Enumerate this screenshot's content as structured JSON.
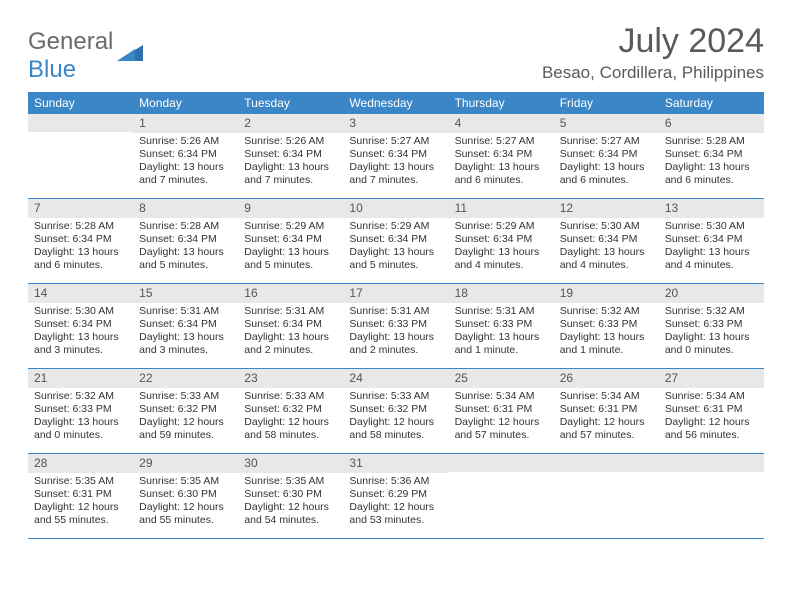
{
  "logo": {
    "text1": "General",
    "text2": "Blue"
  },
  "title": "July 2024",
  "location": "Besao, Cordillera, Philippines",
  "weekdays": [
    "Sunday",
    "Monday",
    "Tuesday",
    "Wednesday",
    "Thursday",
    "Friday",
    "Saturday"
  ],
  "colors": {
    "header_bg": "#3b86c7",
    "daynum_bg": "#e8e8e8",
    "border": "#3b86c7"
  },
  "weeks": [
    [
      {
        "num": "",
        "sunrise": "",
        "sunset": "",
        "daylight1": "",
        "daylight2": ""
      },
      {
        "num": "1",
        "sunrise": "Sunrise: 5:26 AM",
        "sunset": "Sunset: 6:34 PM",
        "daylight1": "Daylight: 13 hours",
        "daylight2": "and 7 minutes."
      },
      {
        "num": "2",
        "sunrise": "Sunrise: 5:26 AM",
        "sunset": "Sunset: 6:34 PM",
        "daylight1": "Daylight: 13 hours",
        "daylight2": "and 7 minutes."
      },
      {
        "num": "3",
        "sunrise": "Sunrise: 5:27 AM",
        "sunset": "Sunset: 6:34 PM",
        "daylight1": "Daylight: 13 hours",
        "daylight2": "and 7 minutes."
      },
      {
        "num": "4",
        "sunrise": "Sunrise: 5:27 AM",
        "sunset": "Sunset: 6:34 PM",
        "daylight1": "Daylight: 13 hours",
        "daylight2": "and 6 minutes."
      },
      {
        "num": "5",
        "sunrise": "Sunrise: 5:27 AM",
        "sunset": "Sunset: 6:34 PM",
        "daylight1": "Daylight: 13 hours",
        "daylight2": "and 6 minutes."
      },
      {
        "num": "6",
        "sunrise": "Sunrise: 5:28 AM",
        "sunset": "Sunset: 6:34 PM",
        "daylight1": "Daylight: 13 hours",
        "daylight2": "and 6 minutes."
      }
    ],
    [
      {
        "num": "7",
        "sunrise": "Sunrise: 5:28 AM",
        "sunset": "Sunset: 6:34 PM",
        "daylight1": "Daylight: 13 hours",
        "daylight2": "and 6 minutes."
      },
      {
        "num": "8",
        "sunrise": "Sunrise: 5:28 AM",
        "sunset": "Sunset: 6:34 PM",
        "daylight1": "Daylight: 13 hours",
        "daylight2": "and 5 minutes."
      },
      {
        "num": "9",
        "sunrise": "Sunrise: 5:29 AM",
        "sunset": "Sunset: 6:34 PM",
        "daylight1": "Daylight: 13 hours",
        "daylight2": "and 5 minutes."
      },
      {
        "num": "10",
        "sunrise": "Sunrise: 5:29 AM",
        "sunset": "Sunset: 6:34 PM",
        "daylight1": "Daylight: 13 hours",
        "daylight2": "and 5 minutes."
      },
      {
        "num": "11",
        "sunrise": "Sunrise: 5:29 AM",
        "sunset": "Sunset: 6:34 PM",
        "daylight1": "Daylight: 13 hours",
        "daylight2": "and 4 minutes."
      },
      {
        "num": "12",
        "sunrise": "Sunrise: 5:30 AM",
        "sunset": "Sunset: 6:34 PM",
        "daylight1": "Daylight: 13 hours",
        "daylight2": "and 4 minutes."
      },
      {
        "num": "13",
        "sunrise": "Sunrise: 5:30 AM",
        "sunset": "Sunset: 6:34 PM",
        "daylight1": "Daylight: 13 hours",
        "daylight2": "and 4 minutes."
      }
    ],
    [
      {
        "num": "14",
        "sunrise": "Sunrise: 5:30 AM",
        "sunset": "Sunset: 6:34 PM",
        "daylight1": "Daylight: 13 hours",
        "daylight2": "and 3 minutes."
      },
      {
        "num": "15",
        "sunrise": "Sunrise: 5:31 AM",
        "sunset": "Sunset: 6:34 PM",
        "daylight1": "Daylight: 13 hours",
        "daylight2": "and 3 minutes."
      },
      {
        "num": "16",
        "sunrise": "Sunrise: 5:31 AM",
        "sunset": "Sunset: 6:34 PM",
        "daylight1": "Daylight: 13 hours",
        "daylight2": "and 2 minutes."
      },
      {
        "num": "17",
        "sunrise": "Sunrise: 5:31 AM",
        "sunset": "Sunset: 6:33 PM",
        "daylight1": "Daylight: 13 hours",
        "daylight2": "and 2 minutes."
      },
      {
        "num": "18",
        "sunrise": "Sunrise: 5:31 AM",
        "sunset": "Sunset: 6:33 PM",
        "daylight1": "Daylight: 13 hours",
        "daylight2": "and 1 minute."
      },
      {
        "num": "19",
        "sunrise": "Sunrise: 5:32 AM",
        "sunset": "Sunset: 6:33 PM",
        "daylight1": "Daylight: 13 hours",
        "daylight2": "and 1 minute."
      },
      {
        "num": "20",
        "sunrise": "Sunrise: 5:32 AM",
        "sunset": "Sunset: 6:33 PM",
        "daylight1": "Daylight: 13 hours",
        "daylight2": "and 0 minutes."
      }
    ],
    [
      {
        "num": "21",
        "sunrise": "Sunrise: 5:32 AM",
        "sunset": "Sunset: 6:33 PM",
        "daylight1": "Daylight: 13 hours",
        "daylight2": "and 0 minutes."
      },
      {
        "num": "22",
        "sunrise": "Sunrise: 5:33 AM",
        "sunset": "Sunset: 6:32 PM",
        "daylight1": "Daylight: 12 hours",
        "daylight2": "and 59 minutes."
      },
      {
        "num": "23",
        "sunrise": "Sunrise: 5:33 AM",
        "sunset": "Sunset: 6:32 PM",
        "daylight1": "Daylight: 12 hours",
        "daylight2": "and 58 minutes."
      },
      {
        "num": "24",
        "sunrise": "Sunrise: 5:33 AM",
        "sunset": "Sunset: 6:32 PM",
        "daylight1": "Daylight: 12 hours",
        "daylight2": "and 58 minutes."
      },
      {
        "num": "25",
        "sunrise": "Sunrise: 5:34 AM",
        "sunset": "Sunset: 6:31 PM",
        "daylight1": "Daylight: 12 hours",
        "daylight2": "and 57 minutes."
      },
      {
        "num": "26",
        "sunrise": "Sunrise: 5:34 AM",
        "sunset": "Sunset: 6:31 PM",
        "daylight1": "Daylight: 12 hours",
        "daylight2": "and 57 minutes."
      },
      {
        "num": "27",
        "sunrise": "Sunrise: 5:34 AM",
        "sunset": "Sunset: 6:31 PM",
        "daylight1": "Daylight: 12 hours",
        "daylight2": "and 56 minutes."
      }
    ],
    [
      {
        "num": "28",
        "sunrise": "Sunrise: 5:35 AM",
        "sunset": "Sunset: 6:31 PM",
        "daylight1": "Daylight: 12 hours",
        "daylight2": "and 55 minutes."
      },
      {
        "num": "29",
        "sunrise": "Sunrise: 5:35 AM",
        "sunset": "Sunset: 6:30 PM",
        "daylight1": "Daylight: 12 hours",
        "daylight2": "and 55 minutes."
      },
      {
        "num": "30",
        "sunrise": "Sunrise: 5:35 AM",
        "sunset": "Sunset: 6:30 PM",
        "daylight1": "Daylight: 12 hours",
        "daylight2": "and 54 minutes."
      },
      {
        "num": "31",
        "sunrise": "Sunrise: 5:36 AM",
        "sunset": "Sunset: 6:29 PM",
        "daylight1": "Daylight: 12 hours",
        "daylight2": "and 53 minutes."
      },
      {
        "num": "",
        "sunrise": "",
        "sunset": "",
        "daylight1": "",
        "daylight2": ""
      },
      {
        "num": "",
        "sunrise": "",
        "sunset": "",
        "daylight1": "",
        "daylight2": ""
      },
      {
        "num": "",
        "sunrise": "",
        "sunset": "",
        "daylight1": "",
        "daylight2": ""
      }
    ]
  ]
}
